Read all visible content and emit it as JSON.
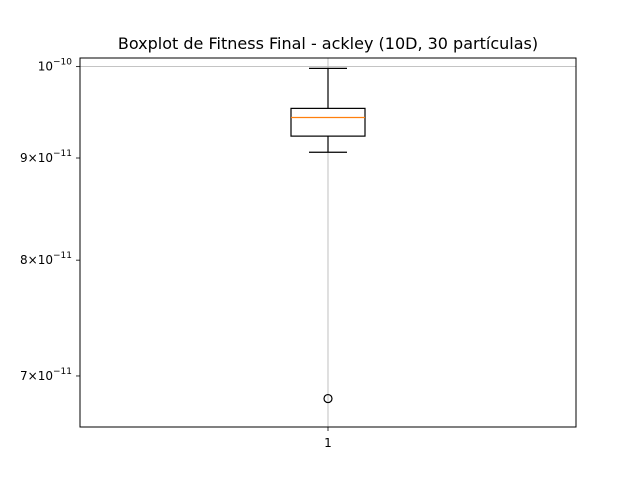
{
  "chart_data": {
    "type": "boxplot",
    "title": "Boxplot de Fitness Final - ackley (10D, 30 partículas)",
    "xlabel": "",
    "ylabel": "",
    "yscale": "log",
    "ylim": [
      6.6e-11,
      1.01e-10
    ],
    "grid": true,
    "categories": [
      "1"
    ],
    "yticks": [
      {
        "value": 1e-10,
        "mantissa": "",
        "exponent": "−10"
      },
      {
        "value": 9e-11,
        "mantissa": "9",
        "exponent": "−11"
      },
      {
        "value": 8e-11,
        "mantissa": "8",
        "exponent": "−11"
      },
      {
        "value": 7e-11,
        "mantissa": "7",
        "exponent": "−11"
      }
    ],
    "boxes": [
      {
        "label": "1",
        "whisker_low": 9.06e-11,
        "q1": 9.23e-11,
        "median": 9.43e-11,
        "q3": 9.53e-11,
        "whisker_high": 9.98e-11,
        "outliers": [
          6.82e-11
        ]
      }
    ],
    "colors": {
      "box": "#000000",
      "median": "#ff7f0e",
      "grid": "#b0b0b0"
    }
  }
}
